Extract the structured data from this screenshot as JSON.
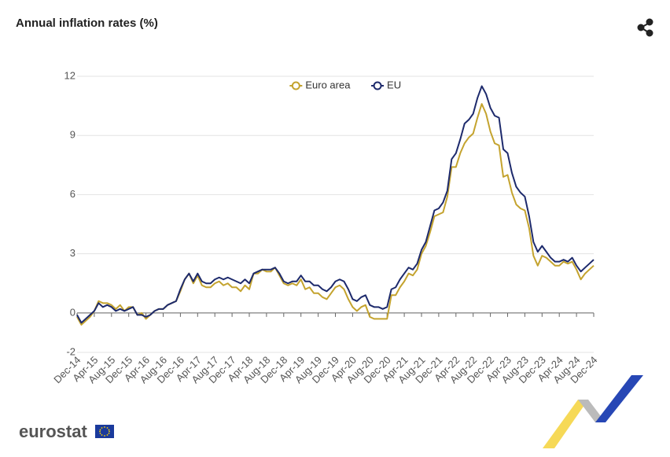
{
  "chart_data": {
    "type": "line",
    "title": "Annual inflation rates (%)",
    "categories": [
      "Dec-14",
      null,
      null,
      null,
      "Apr-15",
      null,
      null,
      null,
      "Aug-15",
      null,
      null,
      null,
      "Dec-15",
      null,
      null,
      null,
      "Apr-16",
      null,
      null,
      null,
      "Aug-16",
      null,
      null,
      null,
      "Dec-16",
      null,
      null,
      null,
      "Apr-17",
      null,
      null,
      null,
      "Aug-17",
      null,
      null,
      null,
      "Dec-17",
      null,
      null,
      null,
      "Apr-18",
      null,
      null,
      null,
      "Aug-18",
      null,
      null,
      null,
      "Dec-18",
      null,
      null,
      null,
      "Apr-19",
      null,
      null,
      null,
      "Aug-19",
      null,
      null,
      null,
      "Dec-19",
      null,
      null,
      null,
      "Apr-20",
      null,
      null,
      null,
      "Aug-20",
      null,
      null,
      null,
      "Dec-20",
      null,
      null,
      null,
      "Apr-21",
      null,
      null,
      null,
      "Aug-21",
      null,
      null,
      null,
      "Dec-21",
      null,
      null,
      null,
      "Apr-22",
      null,
      null,
      null,
      "Aug-22",
      null,
      null,
      null,
      "Dec-22",
      null,
      null,
      null,
      "Apr-23",
      null,
      null,
      null,
      "Aug-23",
      null,
      null,
      null,
      "Dec-23",
      null,
      null,
      null,
      "Apr-24",
      null,
      null,
      null,
      "Aug-24",
      null,
      null,
      null,
      "Dec-24"
    ],
    "series": [
      {
        "name": "Euro area",
        "color": "#c4a32e",
        "values": [
          -0.2,
          -0.6,
          -0.4,
          -0.2,
          0.1,
          0.6,
          0.5,
          0.5,
          0.4,
          0.2,
          0.4,
          0.1,
          0.3,
          0.3,
          -0.1,
          0.0,
          -0.3,
          -0.1,
          0.1,
          0.2,
          0.2,
          0.4,
          0.5,
          0.6,
          1.1,
          1.7,
          2.0,
          1.5,
          1.9,
          1.4,
          1.3,
          1.3,
          1.5,
          1.6,
          1.4,
          1.5,
          1.3,
          1.3,
          1.1,
          1.4,
          1.2,
          2.0,
          2.0,
          2.2,
          2.1,
          2.1,
          2.3,
          1.9,
          1.5,
          1.4,
          1.5,
          1.4,
          1.7,
          1.2,
          1.3,
          1.0,
          1.0,
          0.8,
          0.7,
          1.0,
          1.3,
          1.4,
          1.2,
          0.7,
          0.3,
          0.1,
          0.3,
          0.4,
          -0.2,
          -0.3,
          -0.3,
          -0.3,
          -0.3,
          0.9,
          0.9,
          1.3,
          1.6,
          2.0,
          1.9,
          2.2,
          3.0,
          3.4,
          4.1,
          4.9,
          5.0,
          5.1,
          5.9,
          7.4,
          7.4,
          8.1,
          8.6,
          8.9,
          9.1,
          9.9,
          10.6,
          10.1,
          9.2,
          8.6,
          8.5,
          6.9,
          7.0,
          6.1,
          5.5,
          5.3,
          5.2,
          4.3,
          2.9,
          2.4,
          2.9,
          2.8,
          2.6,
          2.4,
          2.4,
          2.6,
          2.5,
          2.6,
          2.2,
          1.7,
          2.0,
          2.2,
          2.4
        ]
      },
      {
        "name": "EU",
        "color": "#1d2a6c",
        "values": [
          -0.1,
          -0.5,
          -0.3,
          -0.1,
          0.1,
          0.5,
          0.3,
          0.4,
          0.3,
          0.1,
          0.2,
          0.1,
          0.2,
          0.3,
          -0.1,
          -0.1,
          -0.2,
          -0.1,
          0.1,
          0.2,
          0.2,
          0.4,
          0.5,
          0.6,
          1.2,
          1.7,
          2.0,
          1.6,
          2.0,
          1.6,
          1.5,
          1.5,
          1.7,
          1.8,
          1.7,
          1.8,
          1.7,
          1.6,
          1.5,
          1.7,
          1.5,
          2.0,
          2.1,
          2.2,
          2.2,
          2.2,
          2.3,
          2.0,
          1.6,
          1.5,
          1.6,
          1.6,
          1.9,
          1.6,
          1.6,
          1.4,
          1.4,
          1.2,
          1.1,
          1.3,
          1.6,
          1.7,
          1.6,
          1.2,
          0.7,
          0.6,
          0.8,
          0.9,
          0.4,
          0.3,
          0.3,
          0.2,
          0.3,
          1.2,
          1.3,
          1.7,
          2.0,
          2.3,
          2.2,
          2.5,
          3.2,
          3.6,
          4.4,
          5.2,
          5.3,
          5.6,
          6.2,
          7.8,
          8.1,
          8.8,
          9.6,
          9.8,
          10.1,
          10.9,
          11.5,
          11.1,
          10.4,
          10.0,
          9.9,
          8.3,
          8.1,
          7.1,
          6.4,
          6.1,
          5.9,
          4.9,
          3.6,
          3.1,
          3.4,
          3.1,
          2.8,
          2.6,
          2.6,
          2.7,
          2.6,
          2.8,
          2.4,
          2.1,
          2.3,
          2.5,
          2.7
        ]
      }
    ],
    "ylim": [
      -2,
      12
    ],
    "yticks": [
      -2,
      0,
      3,
      6,
      9,
      12
    ],
    "grid": true,
    "legend": "top"
  },
  "brand": "eurostat"
}
